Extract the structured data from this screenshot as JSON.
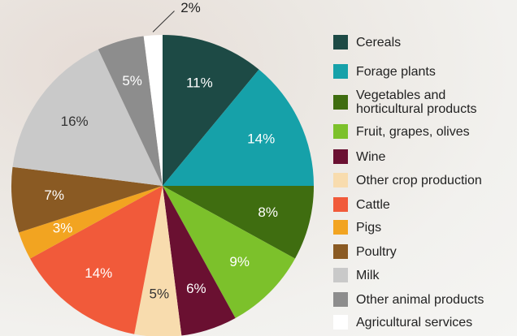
{
  "chart_data": {
    "type": "pie",
    "categories": [
      "Cereals",
      "Forage plants",
      "Vegetables and horticultural products",
      "Fruit, grapes, olives",
      "Wine",
      "Other crop production",
      "Cattle",
      "Pigs",
      "Poultry",
      "Milk",
      "Other animal products",
      "Agricultural services"
    ],
    "values": [
      11,
      14,
      8,
      9,
      6,
      5,
      14,
      3,
      7,
      16,
      5,
      2
    ],
    "value_labels": [
      "11%",
      "14%",
      "8%",
      "9%",
      "6%",
      "5%",
      "14%",
      "3%",
      "7%",
      "16%",
      "5%",
      "2%"
    ],
    "colors": [
      "#1d4a45",
      "#16a1a9",
      "#3f6d10",
      "#7cc12b",
      "#6a1031",
      "#f8dcae",
      "#f15a3a",
      "#f2a421",
      "#8a5a23",
      "#c9c9c9",
      "#8d8d8d",
      "#ffffff"
    ],
    "legend": "right"
  }
}
